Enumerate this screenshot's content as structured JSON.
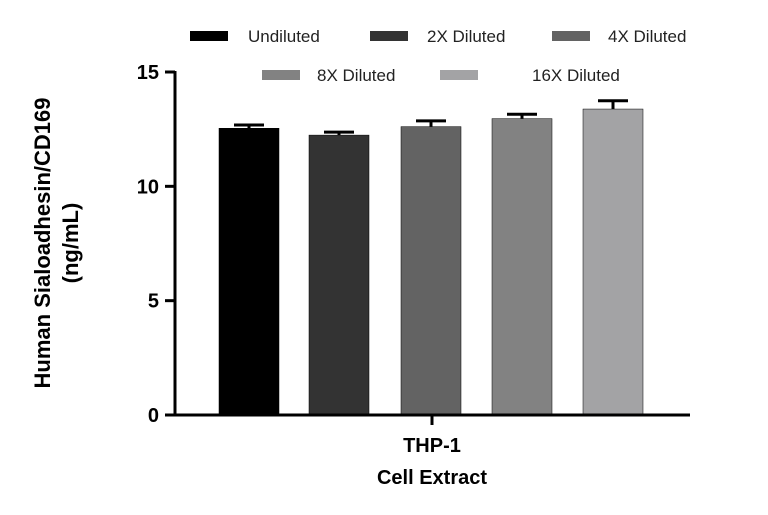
{
  "chart_data": {
    "type": "bar",
    "categories": [
      "THP-1 Cell Extract"
    ],
    "xlabel": [
      "THP-1",
      "Cell Extract"
    ],
    "ylabel": [
      "Human Sialoadhesin/CD169",
      "(ng/mL)"
    ],
    "ylim": [
      0,
      15
    ],
    "yticks": [
      "0",
      "5",
      "10",
      "15"
    ],
    "grid": false,
    "legend_position": "top",
    "series": [
      {
        "name": "Undiluted",
        "values": [
          12.54
        ],
        "error": [
          0.14
        ],
        "color": "#000000"
      },
      {
        "name": "2X Diluted",
        "values": [
          12.24
        ],
        "error": [
          0.13
        ],
        "color": "#333333"
      },
      {
        "name": "4X Diluted",
        "values": [
          12.61
        ],
        "error": [
          0.25
        ],
        "color": "#636363"
      },
      {
        "name": "8X Diluted",
        "values": [
          12.96
        ],
        "error": [
          0.19
        ],
        "color": "#828282"
      },
      {
        "name": "16X Diluted",
        "values": [
          13.38
        ],
        "error": [
          0.36
        ],
        "color": "#a3a3a5"
      }
    ]
  }
}
